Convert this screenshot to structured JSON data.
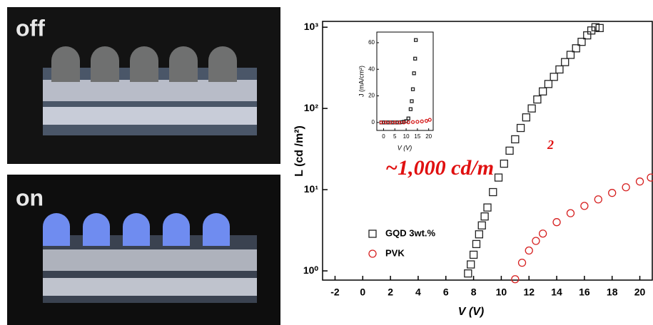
{
  "panels": {
    "off_label": "off",
    "on_label": "on"
  },
  "chart_data": {
    "type": "scatter",
    "xlabel": "V (V)",
    "ylabel": "L (cd /m²)",
    "log_y": true,
    "xlim": [
      -2.9,
      20.9
    ],
    "ylim": [
      0.77,
      1180
    ],
    "xticks": [
      -2,
      0,
      2,
      4,
      6,
      8,
      10,
      12,
      14,
      16,
      18,
      20
    ],
    "yticks": [
      {
        "value": 1,
        "label": "10⁰"
      },
      {
        "value": 10,
        "label": "10¹"
      },
      {
        "value": 100,
        "label": "10²"
      },
      {
        "value": 1000,
        "label": "10³"
      }
    ],
    "annotation": "~1,000 cd/m",
    "annotation_sup": "2",
    "annotation_color": "#e01010",
    "series": [
      {
        "name": "GQD 3wt.%",
        "color": "#222222",
        "marker": "square",
        "x": [
          7.6,
          7.8,
          8,
          8.2,
          8.4,
          8.6,
          8.8,
          9,
          9.4,
          9.8,
          10.2,
          10.6,
          11,
          11.4,
          11.8,
          12.2,
          12.6,
          13,
          13.4,
          13.8,
          14.2,
          14.6,
          15,
          15.4,
          15.8,
          16.2,
          16.5,
          16.8,
          17.1
        ],
        "values": [
          0.93,
          1.2,
          1.58,
          2.14,
          2.82,
          3.63,
          4.68,
          6.03,
          9.33,
          14.1,
          20.9,
          30.2,
          41.7,
          57.5,
          77.6,
          100,
          129,
          162,
          200,
          245,
          302,
          372,
          457,
          550,
          661,
          794,
          912,
          1000,
          977
        ]
      },
      {
        "name": "PVK",
        "color": "#d62020",
        "marker": "circle",
        "x": [
          11,
          11.5,
          12,
          12.5,
          13,
          14,
          15,
          16,
          17,
          18,
          19,
          20,
          20.8
        ],
        "values": [
          0.79,
          1.26,
          1.78,
          2.34,
          2.88,
          3.98,
          5.13,
          6.31,
          7.59,
          9.12,
          10.7,
          12.6,
          14.1
        ]
      }
    ],
    "inset": {
      "xlabel": "V (V)",
      "ylabel": "J (mA/cm²)",
      "xlim": [
        -3,
        22
      ],
      "ylim": [
        -6,
        68
      ],
      "xticks": [
        0,
        5,
        10,
        15,
        20
      ],
      "yticks": [
        0,
        20,
        40,
        60
      ],
      "series": [
        {
          "color": "#222222",
          "marker": "square",
          "x": [
            -1,
            0,
            1,
            2,
            3,
            4,
            5,
            6,
            7,
            8,
            9,
            10,
            11,
            12,
            12.5,
            13,
            13.5,
            14,
            14.3
          ],
          "values": [
            0,
            0,
            0,
            0,
            0,
            0,
            0,
            0,
            0,
            0.2,
            0.5,
            1,
            3,
            10,
            16,
            25,
            37,
            48,
            62
          ]
        },
        {
          "color": "#d62020",
          "marker": "circle",
          "x": [
            -1,
            1,
            3,
            5,
            7,
            9,
            11,
            13,
            15,
            17,
            19,
            20.5
          ],
          "values": [
            0,
            0,
            0,
            0,
            0,
            0,
            0.1,
            0.3,
            0.5,
            0.8,
            1.2,
            2
          ]
        }
      ]
    }
  }
}
